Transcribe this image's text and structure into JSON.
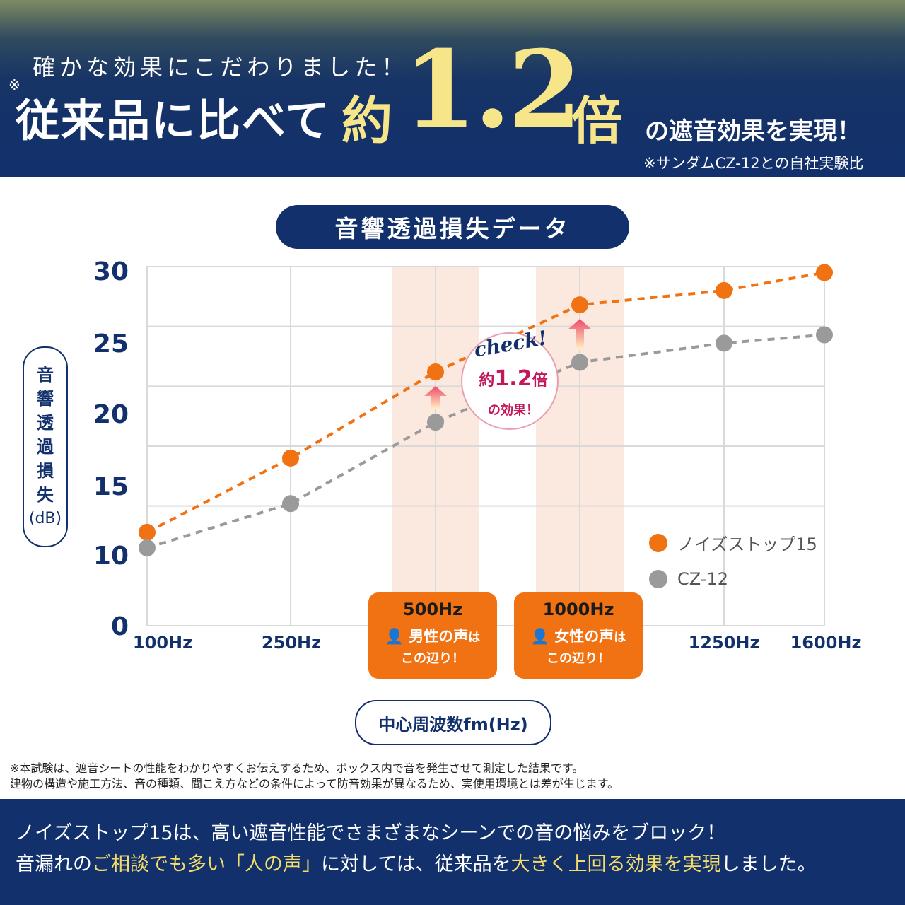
{
  "header": {
    "subtitle": "確かな効果にこだわりました！",
    "note_mark": "※",
    "main_text": "従来品に比べて",
    "approx": "約",
    "big_number": "1.2",
    "times": "倍",
    "tail": "の遮音効果を実現！",
    "reference": "※サンダムCZ-12との自社実験比"
  },
  "chart_title": "音響透過損失データ",
  "ylabel_chars": [
    "音",
    "響",
    "透",
    "過",
    "損",
    "失",
    "(dB)"
  ],
  "xaxis_label": "中心周波数fm(Hz)",
  "chart_data": {
    "type": "line",
    "x": [
      "100Hz",
      "250Hz",
      "500Hz",
      "1000Hz",
      "1250Hz",
      "1600Hz"
    ],
    "x_tick_labels": [
      "100Hz",
      "250Hz",
      "1250Hz",
      "1600Hz"
    ],
    "y_ticks": [
      "0",
      "10",
      "15",
      "20",
      "25",
      "30"
    ],
    "ylim": [
      0,
      30
    ],
    "ylabel": "音響透過損失(dB)",
    "xlabel": "中心周波数fm(Hz)",
    "grid": true,
    "legend_position": "right",
    "series": [
      {
        "name": "ノイズストップ15",
        "color": "#f07213",
        "values": [
          7.8,
          14.0,
          21.2,
          26.8,
          28.0,
          29.5
        ]
      },
      {
        "name": "CZ-12",
        "color": "#9a9a9a",
        "values": [
          6.5,
          10.2,
          17.0,
          22.0,
          23.6,
          24.3
        ]
      }
    ],
    "highlights": [
      {
        "x": "500Hz",
        "hz": "500Hz",
        "text1": "男性の声",
        "text1b": "は",
        "text2": "この辺り！"
      },
      {
        "x": "1000Hz",
        "hz": "1000Hz",
        "text1": "女性の声",
        "text1b": "は",
        "text2": "この辺り！"
      }
    ],
    "annotation": {
      "word": "check!",
      "approx": "約",
      "value": "1.2",
      "times": "倍",
      "sub": "の効果！"
    }
  },
  "footnote": {
    "line1": "※本試験は、遮音シートの性能をわかりやすくお伝えするため、ボックス内で音を発生させて測定した結果です。",
    "line2": "建物の構造や施工方法、音の種類、聞こえ方などの条件によって防音効果が異なるため、実使用環境とは差が生じます。"
  },
  "footer": {
    "line1": "ノイズストップ15は、高い遮音性能でさまざまなシーンでの音の悩みをブロック！",
    "line2_a": "音漏れの",
    "line2_b": "ご相談でも多い「人の声」",
    "line2_c": "に対しては、従来品を",
    "line2_d": "大きく上回る効果を実現",
    "line2_e": "しました。"
  }
}
